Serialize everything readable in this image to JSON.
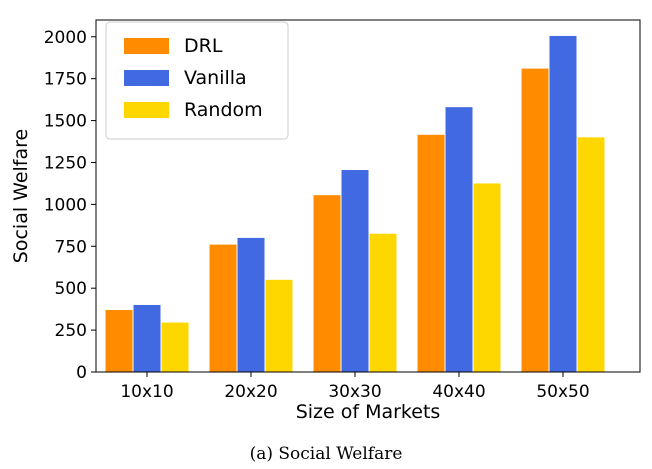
{
  "chart_data": {
    "type": "bar",
    "categories": [
      "10x10",
      "20x20",
      "30x30",
      "40x40",
      "50x50"
    ],
    "series": [
      {
        "name": "DRL",
        "color": "#FF8C00",
        "values": [
          370,
          760,
          1055,
          1415,
          1810
        ]
      },
      {
        "name": "Vanilla",
        "color": "#4169E1",
        "values": [
          400,
          800,
          1205,
          1580,
          2005
        ]
      },
      {
        "name": "Random",
        "color": "#FFD700",
        "values": [
          295,
          550,
          825,
          1125,
          1400
        ]
      }
    ],
    "xlabel": "Size of Markets",
    "ylabel": "Social Welfare",
    "ylim": [
      0,
      2100
    ],
    "yticks": [
      0,
      250,
      500,
      750,
      1000,
      1250,
      1500,
      1750,
      2000
    ],
    "ytick_labels": [
      "0",
      "250",
      "500",
      "750",
      "1000",
      "1250",
      "1500",
      "1750",
      "2000"
    ],
    "legend_position": "top-left",
    "grid": false
  },
  "caption": "(a) Social Welfare"
}
